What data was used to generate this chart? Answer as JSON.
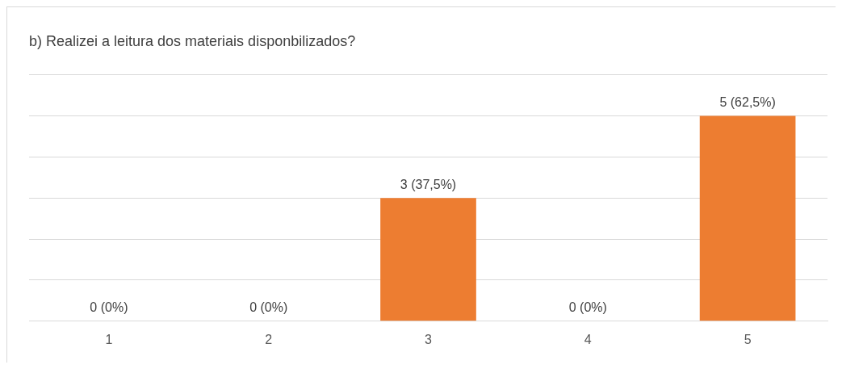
{
  "chart_data": {
    "type": "bar",
    "title": "b) Realizei a leitura dos materiais disponbilizados?",
    "categories": [
      "1",
      "2",
      "3",
      "4",
      "5"
    ],
    "values": [
      0,
      0,
      3,
      0,
      5
    ],
    "value_labels": [
      "0 (0%)",
      "0 (0%)",
      "3 (37,5%)",
      "0 (0%)",
      "5 (62,5%)"
    ],
    "color": "#ed7d31",
    "ylim": [
      0,
      6
    ],
    "yticks": [
      {
        "value": 0,
        "label": null
      },
      {
        "value": 1,
        "label": null
      },
      {
        "value": 2,
        "label": null
      },
      {
        "value": 3,
        "label": null
      },
      {
        "value": 4,
        "label": null
      },
      {
        "value": 5,
        "label": null
      },
      {
        "value": 6,
        "label": null
      }
    ],
    "grid": "y",
    "tick_labels": "x"
  }
}
